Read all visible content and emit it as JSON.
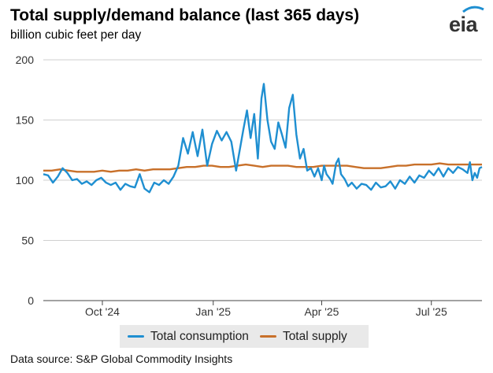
{
  "header": {
    "title": "Total supply/demand balance (last 365 days)",
    "subtitle": "billion cubic feet per day"
  },
  "logo": {
    "text": "eia"
  },
  "source": "Data source: S&P Global Commodity Insights",
  "colors": {
    "consumption": "#1f8fd1",
    "supply": "#c8702a",
    "grid": "#cfcfcf",
    "axis": "#444444"
  },
  "chart_data": {
    "type": "line",
    "title": "Total supply/demand balance (last 365 days)",
    "subtitle": "billion cubic feet per day",
    "ylabel": "",
    "xlabel": "",
    "ylim": [
      0,
      200
    ],
    "yticks": [
      0,
      50,
      100,
      150,
      200
    ],
    "xlim": [
      "2024-08-13",
      "2025-08-12"
    ],
    "xticks": [
      {
        "date": "2024-10-01",
        "label": "Oct '24"
      },
      {
        "date": "2025-01-01",
        "label": "Jan '25"
      },
      {
        "date": "2025-04-01",
        "label": "Apr '25"
      },
      {
        "date": "2025-07-01",
        "label": "Jul '25"
      }
    ],
    "grid": "horizontal",
    "legend_position": "bottom",
    "series": [
      {
        "name": "Total consumption",
        "color": "#1f8fd1",
        "points": [
          [
            "2024-08-13",
            105
          ],
          [
            "2024-08-17",
            104
          ],
          [
            "2024-08-21",
            98
          ],
          [
            "2024-08-25",
            103
          ],
          [
            "2024-08-29",
            110
          ],
          [
            "2024-09-02",
            106
          ],
          [
            "2024-09-06",
            100
          ],
          [
            "2024-09-10",
            101
          ],
          [
            "2024-09-14",
            97
          ],
          [
            "2024-09-18",
            99
          ],
          [
            "2024-09-22",
            96
          ],
          [
            "2024-09-26",
            100
          ],
          [
            "2024-09-30",
            102
          ],
          [
            "2024-10-04",
            98
          ],
          [
            "2024-10-08",
            96
          ],
          [
            "2024-10-12",
            98
          ],
          [
            "2024-10-16",
            92
          ],
          [
            "2024-10-20",
            97
          ],
          [
            "2024-10-24",
            95
          ],
          [
            "2024-10-28",
            94
          ],
          [
            "2024-11-01",
            105
          ],
          [
            "2024-11-05",
            93
          ],
          [
            "2024-11-09",
            90
          ],
          [
            "2024-11-13",
            98
          ],
          [
            "2024-11-17",
            96
          ],
          [
            "2024-11-21",
            100
          ],
          [
            "2024-11-25",
            97
          ],
          [
            "2024-11-29",
            103
          ],
          [
            "2024-12-03",
            112
          ],
          [
            "2024-12-07",
            135
          ],
          [
            "2024-12-11",
            122
          ],
          [
            "2024-12-15",
            140
          ],
          [
            "2024-12-19",
            120
          ],
          [
            "2024-12-23",
            142
          ],
          [
            "2024-12-27",
            112
          ],
          [
            "2024-12-31",
            130
          ],
          [
            "2025-01-04",
            141
          ],
          [
            "2025-01-08",
            133
          ],
          [
            "2025-01-12",
            140
          ],
          [
            "2025-01-16",
            132
          ],
          [
            "2025-01-20",
            108
          ],
          [
            "2025-01-23",
            125
          ],
          [
            "2025-01-26",
            142
          ],
          [
            "2025-01-29",
            158
          ],
          [
            "2025-02-01",
            135
          ],
          [
            "2025-02-04",
            155
          ],
          [
            "2025-02-07",
            118
          ],
          [
            "2025-02-10",
            168
          ],
          [
            "2025-02-12",
            180
          ],
          [
            "2025-02-15",
            150
          ],
          [
            "2025-02-18",
            132
          ],
          [
            "2025-02-21",
            126
          ],
          [
            "2025-02-24",
            148
          ],
          [
            "2025-02-27",
            138
          ],
          [
            "2025-03-02",
            127
          ],
          [
            "2025-03-05",
            160
          ],
          [
            "2025-03-08",
            171
          ],
          [
            "2025-03-11",
            138
          ],
          [
            "2025-03-14",
            118
          ],
          [
            "2025-03-17",
            126
          ],
          [
            "2025-03-20",
            108
          ],
          [
            "2025-03-23",
            110
          ],
          [
            "2025-03-26",
            103
          ],
          [
            "2025-03-29",
            110
          ],
          [
            "2025-04-01",
            100
          ],
          [
            "2025-04-03",
            112
          ],
          [
            "2025-04-05",
            105
          ],
          [
            "2025-04-08",
            101
          ],
          [
            "2025-04-10",
            97
          ],
          [
            "2025-04-13",
            114
          ],
          [
            "2025-04-15",
            118
          ],
          [
            "2025-04-17",
            105
          ],
          [
            "2025-04-20",
            101
          ],
          [
            "2025-04-23",
            95
          ],
          [
            "2025-04-26",
            98
          ],
          [
            "2025-04-30",
            93
          ],
          [
            "2025-05-04",
            97
          ],
          [
            "2025-05-08",
            96
          ],
          [
            "2025-05-12",
            92
          ],
          [
            "2025-05-16",
            98
          ],
          [
            "2025-05-20",
            94
          ],
          [
            "2025-05-24",
            95
          ],
          [
            "2025-05-28",
            99
          ],
          [
            "2025-06-01",
            93
          ],
          [
            "2025-06-05",
            100
          ],
          [
            "2025-06-09",
            97
          ],
          [
            "2025-06-13",
            103
          ],
          [
            "2025-06-17",
            98
          ],
          [
            "2025-06-21",
            104
          ],
          [
            "2025-06-25",
            102
          ],
          [
            "2025-06-29",
            108
          ],
          [
            "2025-07-03",
            104
          ],
          [
            "2025-07-07",
            110
          ],
          [
            "2025-07-11",
            103
          ],
          [
            "2025-07-15",
            110
          ],
          [
            "2025-07-19",
            106
          ],
          [
            "2025-07-23",
            111
          ],
          [
            "2025-07-27",
            109
          ],
          [
            "2025-07-31",
            106
          ],
          [
            "2025-08-02",
            115
          ],
          [
            "2025-08-04",
            100
          ],
          [
            "2025-08-06",
            106
          ],
          [
            "2025-08-08",
            102
          ],
          [
            "2025-08-10",
            110
          ],
          [
            "2025-08-12",
            111
          ]
        ]
      },
      {
        "name": "Total supply",
        "color": "#c8702a",
        "points": [
          [
            "2024-08-13",
            108
          ],
          [
            "2024-08-20",
            108
          ],
          [
            "2024-08-27",
            109
          ],
          [
            "2024-09-03",
            108
          ],
          [
            "2024-09-10",
            107
          ],
          [
            "2024-09-17",
            107
          ],
          [
            "2024-09-24",
            107
          ],
          [
            "2024-10-01",
            108
          ],
          [
            "2024-10-08",
            107
          ],
          [
            "2024-10-15",
            108
          ],
          [
            "2024-10-22",
            108
          ],
          [
            "2024-10-29",
            109
          ],
          [
            "2024-11-05",
            108
          ],
          [
            "2024-11-12",
            109
          ],
          [
            "2024-11-19",
            109
          ],
          [
            "2024-11-26",
            109
          ],
          [
            "2024-12-03",
            110
          ],
          [
            "2024-12-10",
            111
          ],
          [
            "2024-12-17",
            111
          ],
          [
            "2024-12-24",
            112
          ],
          [
            "2024-12-31",
            112
          ],
          [
            "2025-01-07",
            111
          ],
          [
            "2025-01-14",
            111
          ],
          [
            "2025-01-21",
            112
          ],
          [
            "2025-01-28",
            113
          ],
          [
            "2025-02-04",
            112
          ],
          [
            "2025-02-11",
            111
          ],
          [
            "2025-02-18",
            112
          ],
          [
            "2025-02-25",
            112
          ],
          [
            "2025-03-04",
            112
          ],
          [
            "2025-03-11",
            111
          ],
          [
            "2025-03-18",
            111
          ],
          [
            "2025-03-25",
            111
          ],
          [
            "2025-04-01",
            112
          ],
          [
            "2025-04-08",
            112
          ],
          [
            "2025-04-15",
            112
          ],
          [
            "2025-04-22",
            112
          ],
          [
            "2025-04-29",
            111
          ],
          [
            "2025-05-06",
            110
          ],
          [
            "2025-05-13",
            110
          ],
          [
            "2025-05-20",
            110
          ],
          [
            "2025-05-27",
            111
          ],
          [
            "2025-06-03",
            112
          ],
          [
            "2025-06-10",
            112
          ],
          [
            "2025-06-17",
            113
          ],
          [
            "2025-06-24",
            113
          ],
          [
            "2025-07-01",
            113
          ],
          [
            "2025-07-08",
            114
          ],
          [
            "2025-07-15",
            113
          ],
          [
            "2025-07-22",
            113
          ],
          [
            "2025-07-29",
            113
          ],
          [
            "2025-08-05",
            113
          ],
          [
            "2025-08-12",
            113
          ]
        ]
      }
    ]
  }
}
